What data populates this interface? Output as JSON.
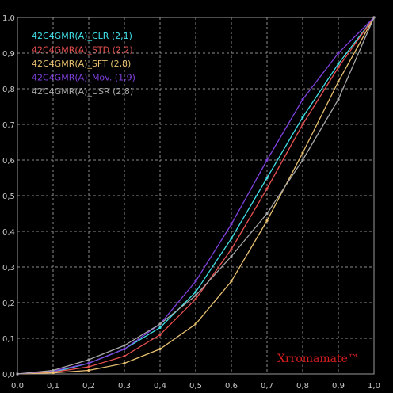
{
  "chart_data": {
    "type": "line",
    "xlim": [
      0,
      1
    ],
    "ylim": [
      0,
      1
    ],
    "grid": true,
    "legend_placement": "top-left",
    "x_ticks": [
      "0,0",
      "0,1",
      "0,2",
      "0,3",
      "0,4",
      "0,5",
      "0,6",
      "0,7",
      "0,8",
      "0,9",
      "1,0"
    ],
    "y_ticks": [
      "0,0",
      "0,1",
      "0,2",
      "0,3",
      "0,4",
      "0,5",
      "0,6",
      "0,7",
      "0,8",
      "0,9",
      "1,0"
    ],
    "watermark": "Xrromamate™",
    "series": [
      {
        "name": "42C4GMR(A)_CLR (2,1)",
        "color": "#40e0e8",
        "x": [
          0,
          0.1,
          0.2,
          0.3,
          0.4,
          0.5,
          0.6,
          0.7,
          0.8,
          0.9,
          1.0
        ],
        "y": [
          0,
          0.005,
          0.03,
          0.07,
          0.13,
          0.23,
          0.38,
          0.55,
          0.72,
          0.87,
          1.0
        ]
      },
      {
        "name": "42C4GMR(A)_STD (2,2)",
        "color": "#e85050",
        "x": [
          0,
          0.1,
          0.2,
          0.3,
          0.4,
          0.5,
          0.6,
          0.7,
          0.8,
          0.9,
          1.0
        ],
        "y": [
          0,
          0.005,
          0.02,
          0.05,
          0.11,
          0.21,
          0.35,
          0.52,
          0.7,
          0.86,
          1.0
        ]
      },
      {
        "name": "42C4GMR(A)_SFT (2,8)",
        "color": "#e8c070",
        "x": [
          0,
          0.1,
          0.2,
          0.3,
          0.4,
          0.5,
          0.6,
          0.7,
          0.8,
          0.9,
          1.0
        ],
        "y": [
          0,
          0.003,
          0.01,
          0.03,
          0.07,
          0.14,
          0.26,
          0.43,
          0.62,
          0.82,
          1.0
        ]
      },
      {
        "name": "42C4GMR(A)_Mov. (1,9)",
        "color": "#8040e0",
        "x": [
          0,
          0.1,
          0.2,
          0.3,
          0.4,
          0.5,
          0.6,
          0.7,
          0.8,
          0.9,
          1.0
        ],
        "y": [
          0,
          0.008,
          0.03,
          0.07,
          0.14,
          0.26,
          0.42,
          0.6,
          0.77,
          0.9,
          1.0
        ]
      },
      {
        "name": "42C4GMR(A)_USR (2,8)",
        "color": "#a8a8a8",
        "x": [
          0,
          0.1,
          0.2,
          0.3,
          0.4,
          0.5,
          0.6,
          0.7,
          0.8,
          0.9,
          1.0
        ],
        "y": [
          0,
          0.01,
          0.04,
          0.08,
          0.14,
          0.22,
          0.33,
          0.45,
          0.6,
          0.77,
          1.0
        ]
      }
    ]
  }
}
